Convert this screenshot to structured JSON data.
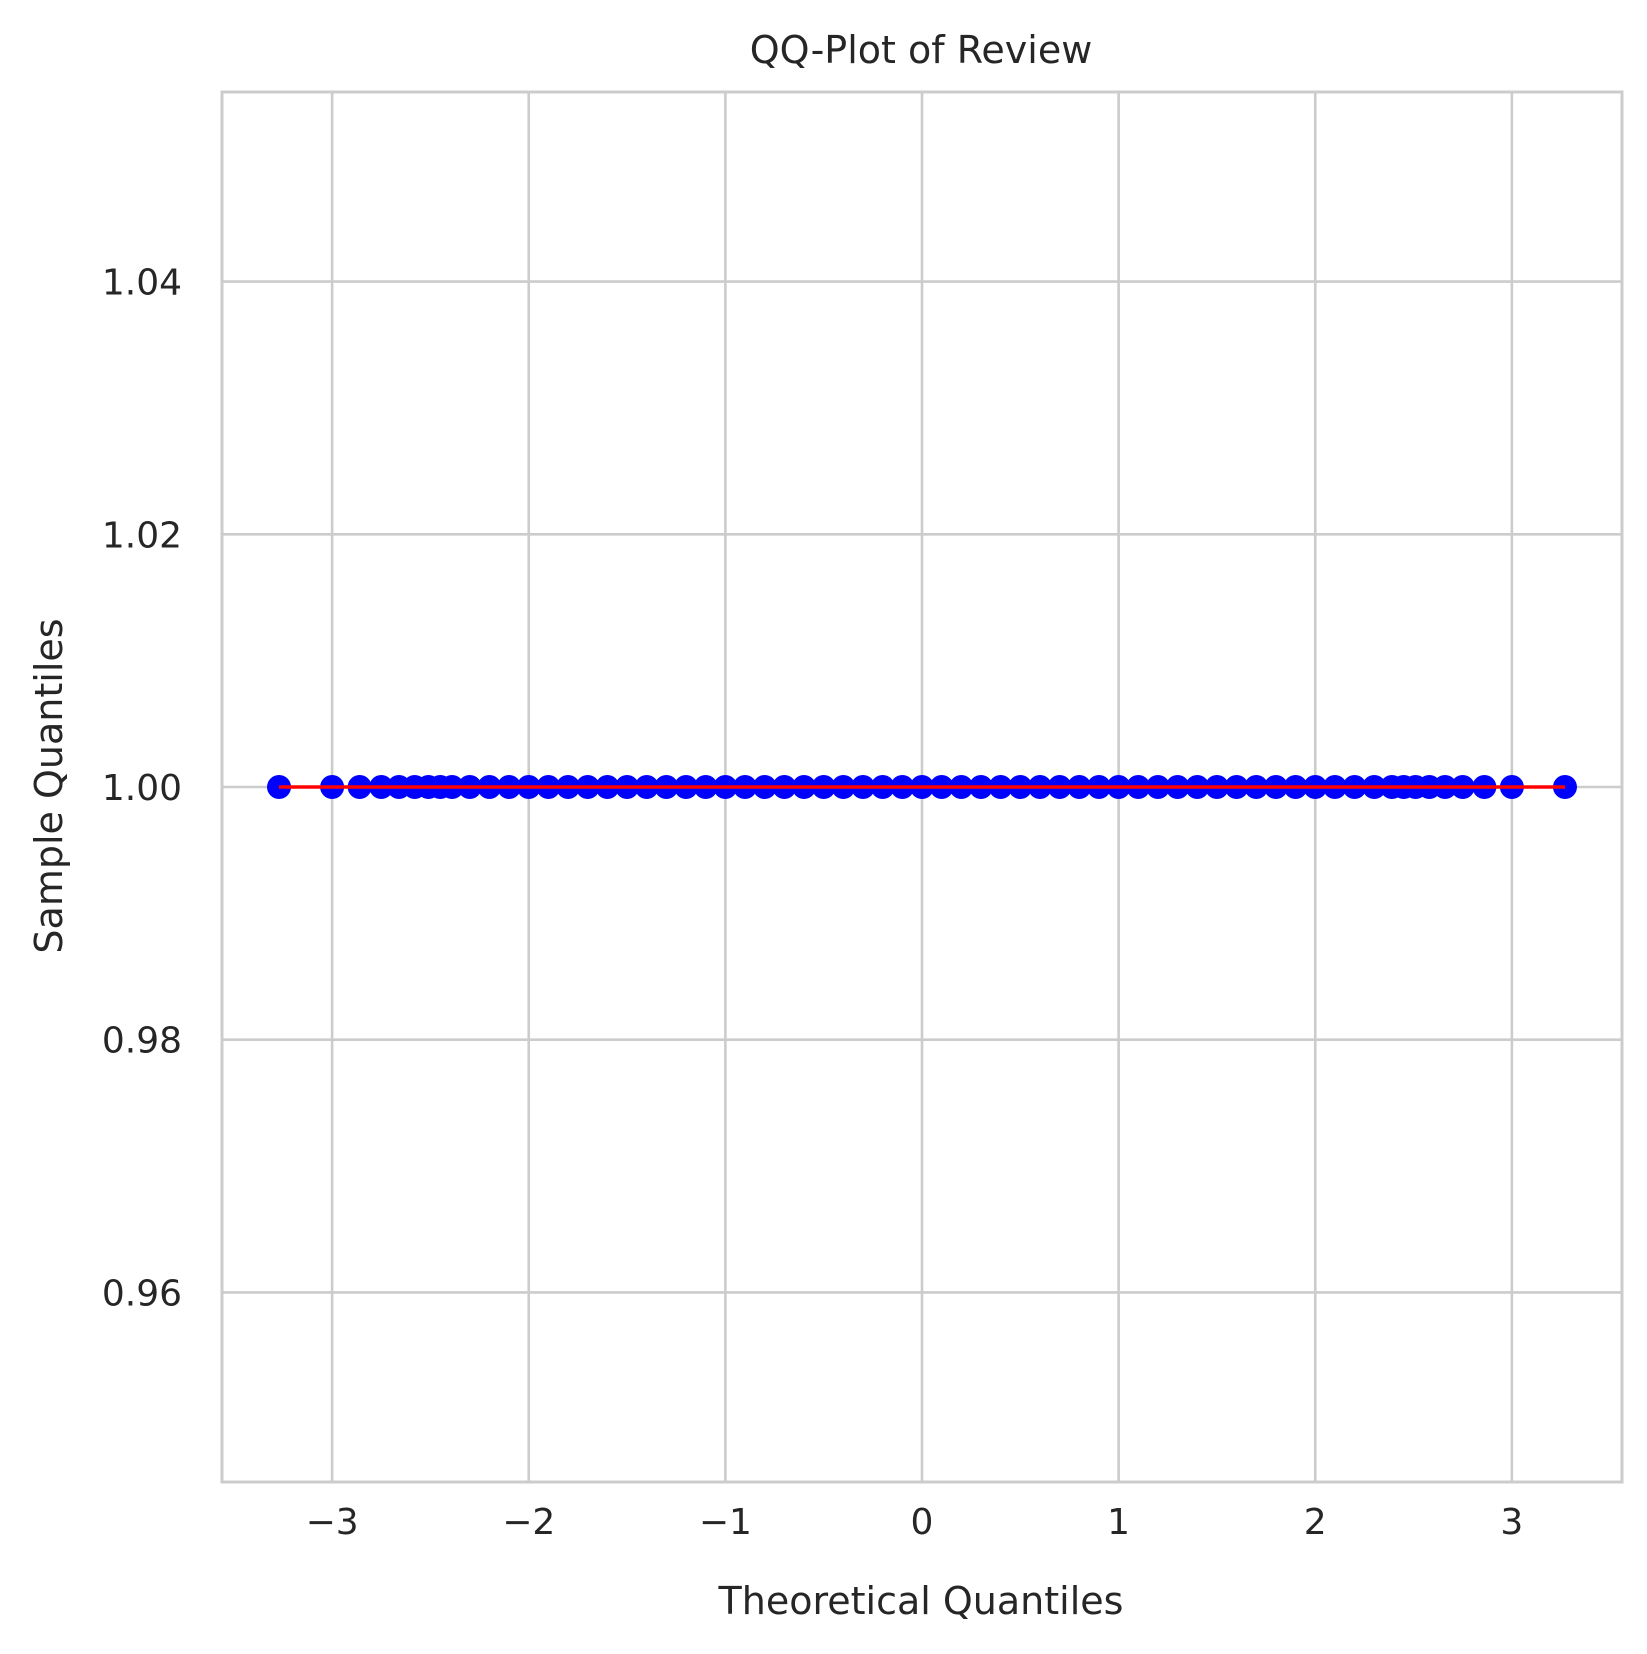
{
  "chart_data": {
    "type": "scatter",
    "title": "QQ-Plot of Review",
    "xlabel": "Theoretical Quantiles",
    "ylabel": "Sample Quantiles",
    "xlim": [
      -3.56,
      3.56
    ],
    "ylim": [
      0.945,
      1.055
    ],
    "x_ticks": [
      -3,
      -2,
      -1,
      0,
      1,
      2,
      3
    ],
    "x_tick_labels": [
      "−3",
      "−2",
      "−1",
      "0",
      "1",
      "2",
      "3"
    ],
    "y_ticks": [
      0.96,
      0.98,
      1.0,
      1.02,
      1.04
    ],
    "y_tick_labels": [
      "0.96",
      "0.98",
      "1.00",
      "1.02",
      "1.04"
    ],
    "grid": true,
    "series": [
      {
        "kind": "points",
        "color": "#0000ff",
        "points": [
          {
            "x": -3.27,
            "y": 1.0
          },
          {
            "x": -3.0,
            "y": 1.0
          },
          {
            "x": -2.86,
            "y": 1.0
          },
          {
            "x": -2.75,
            "y": 1.0
          },
          {
            "x": -2.66,
            "y": 1.0
          },
          {
            "x": -2.58,
            "y": 1.0
          },
          {
            "x": -2.51,
            "y": 1.0
          },
          {
            "x": -2.45,
            "y": 1.0
          },
          {
            "x": -2.39,
            "y": 1.0
          },
          {
            "x": -2.3,
            "y": 1.0
          },
          {
            "x": -2.2,
            "y": 1.0
          },
          {
            "x": -2.1,
            "y": 1.0
          },
          {
            "x": -2.0,
            "y": 1.0
          },
          {
            "x": -1.9,
            "y": 1.0
          },
          {
            "x": -1.8,
            "y": 1.0
          },
          {
            "x": -1.7,
            "y": 1.0
          },
          {
            "x": -1.6,
            "y": 1.0
          },
          {
            "x": -1.5,
            "y": 1.0
          },
          {
            "x": -1.4,
            "y": 1.0
          },
          {
            "x": -1.3,
            "y": 1.0
          },
          {
            "x": -1.2,
            "y": 1.0
          },
          {
            "x": -1.1,
            "y": 1.0
          },
          {
            "x": -1.0,
            "y": 1.0
          },
          {
            "x": -0.9,
            "y": 1.0
          },
          {
            "x": -0.8,
            "y": 1.0
          },
          {
            "x": -0.7,
            "y": 1.0
          },
          {
            "x": -0.6,
            "y": 1.0
          },
          {
            "x": -0.5,
            "y": 1.0
          },
          {
            "x": -0.4,
            "y": 1.0
          },
          {
            "x": -0.3,
            "y": 1.0
          },
          {
            "x": -0.2,
            "y": 1.0
          },
          {
            "x": -0.1,
            "y": 1.0
          },
          {
            "x": 0.0,
            "y": 1.0
          },
          {
            "x": 0.1,
            "y": 1.0
          },
          {
            "x": 0.2,
            "y": 1.0
          },
          {
            "x": 0.3,
            "y": 1.0
          },
          {
            "x": 0.4,
            "y": 1.0
          },
          {
            "x": 0.5,
            "y": 1.0
          },
          {
            "x": 0.6,
            "y": 1.0
          },
          {
            "x": 0.7,
            "y": 1.0
          },
          {
            "x": 0.8,
            "y": 1.0
          },
          {
            "x": 0.9,
            "y": 1.0
          },
          {
            "x": 1.0,
            "y": 1.0
          },
          {
            "x": 1.1,
            "y": 1.0
          },
          {
            "x": 1.2,
            "y": 1.0
          },
          {
            "x": 1.3,
            "y": 1.0
          },
          {
            "x": 1.4,
            "y": 1.0
          },
          {
            "x": 1.5,
            "y": 1.0
          },
          {
            "x": 1.6,
            "y": 1.0
          },
          {
            "x": 1.7,
            "y": 1.0
          },
          {
            "x": 1.8,
            "y": 1.0
          },
          {
            "x": 1.9,
            "y": 1.0
          },
          {
            "x": 2.0,
            "y": 1.0
          },
          {
            "x": 2.1,
            "y": 1.0
          },
          {
            "x": 2.2,
            "y": 1.0
          },
          {
            "x": 2.3,
            "y": 1.0
          },
          {
            "x": 2.39,
            "y": 1.0
          },
          {
            "x": 2.45,
            "y": 1.0
          },
          {
            "x": 2.51,
            "y": 1.0
          },
          {
            "x": 2.58,
            "y": 1.0
          },
          {
            "x": 2.66,
            "y": 1.0
          },
          {
            "x": 2.75,
            "y": 1.0
          },
          {
            "x": 2.86,
            "y": 1.0
          },
          {
            "x": 3.0,
            "y": 1.0
          },
          {
            "x": 3.27,
            "y": 1.0
          }
        ]
      },
      {
        "kind": "line",
        "color": "#ff0000",
        "points": [
          {
            "x": -3.27,
            "y": 1.0
          },
          {
            "x": 3.27,
            "y": 1.0
          }
        ]
      }
    ]
  }
}
